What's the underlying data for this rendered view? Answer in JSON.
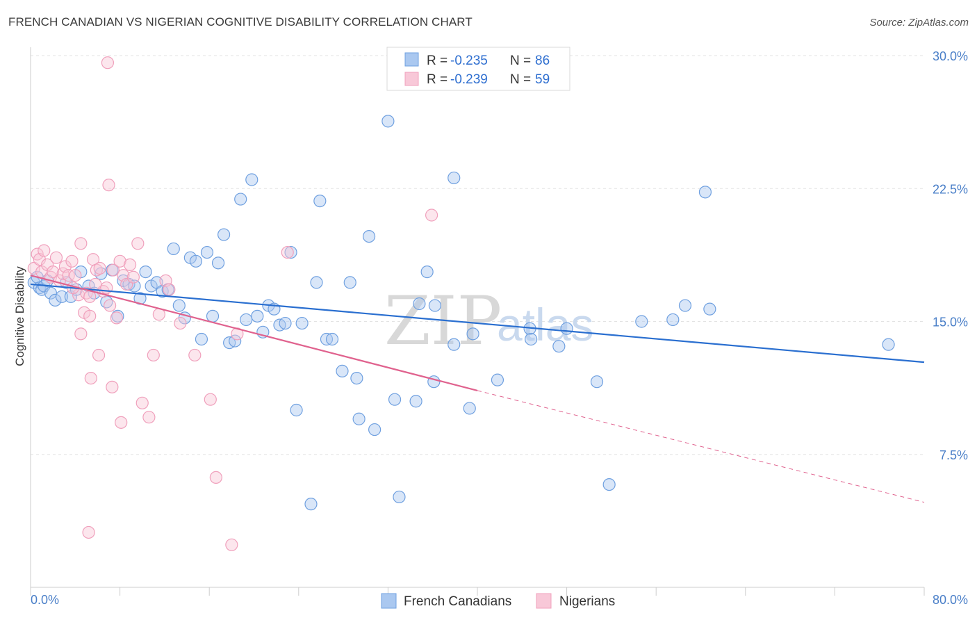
{
  "title": "FRENCH CANADIAN VS NIGERIAN COGNITIVE DISABILITY CORRELATION CHART",
  "source": "Source: ZipAtlas.com",
  "watermark": {
    "zip": "ZIP",
    "atlas": "atlas"
  },
  "chart_data": {
    "type": "scatter",
    "ylabel": "Cognitive Disability",
    "xlim": [
      0,
      80
    ],
    "ylim": [
      0,
      30
    ],
    "x_tick_labels": [
      "0.0%",
      "80.0%"
    ],
    "y_ticks": [
      7.5,
      15.0,
      22.5,
      30.0
    ],
    "y_tick_labels": [
      "7.5%",
      "15.0%",
      "22.5%",
      "30.0%"
    ],
    "grid": true,
    "legend": {
      "placement": "top-center",
      "entries": [
        {
          "r_label": "R =",
          "r_value": "-0.235",
          "n_label": "N =",
          "n_value": "86"
        },
        {
          "r_label": "R =",
          "r_value": "-0.239",
          "n_label": "N =",
          "n_value": "59"
        }
      ]
    },
    "series": [
      {
        "name": "French Canadians",
        "color": "#6fa0e0",
        "fill": "#aac8f0",
        "trend_color": "#2a6fd0",
        "trend": {
          "x0": 0,
          "y0": 17.1,
          "x1": 80,
          "y1": 12.7
        },
        "points": [
          [
            0.3,
            17.2
          ],
          [
            0.6,
            17.5
          ],
          [
            0.8,
            16.9
          ],
          [
            1.0,
            16.8
          ],
          [
            1.2,
            17.0
          ],
          [
            1.5,
            17.3
          ],
          [
            1.8,
            16.6
          ],
          [
            2.2,
            16.2
          ],
          [
            2.8,
            16.4
          ],
          [
            3.2,
            17.2
          ],
          [
            3.6,
            16.4
          ],
          [
            4.1,
            16.8
          ],
          [
            4.5,
            17.8
          ],
          [
            5.2,
            17.0
          ],
          [
            5.7,
            16.6
          ],
          [
            6.3,
            17.7
          ],
          [
            6.8,
            16.1
          ],
          [
            7.3,
            17.9
          ],
          [
            7.8,
            15.3
          ],
          [
            8.3,
            17.3
          ],
          [
            8.8,
            17.1
          ],
          [
            9.3,
            17.0
          ],
          [
            9.8,
            16.3
          ],
          [
            10.3,
            17.8
          ],
          [
            10.8,
            17.0
          ],
          [
            11.3,
            17.2
          ],
          [
            11.8,
            16.7
          ],
          [
            12.3,
            16.8
          ],
          [
            12.8,
            19.1
          ],
          [
            13.3,
            15.9
          ],
          [
            13.8,
            15.2
          ],
          [
            14.3,
            18.6
          ],
          [
            14.8,
            18.4
          ],
          [
            15.3,
            14.0
          ],
          [
            15.8,
            18.9
          ],
          [
            16.3,
            15.3
          ],
          [
            16.8,
            18.3
          ],
          [
            17.3,
            19.9
          ],
          [
            17.8,
            13.8
          ],
          [
            18.3,
            13.9
          ],
          [
            18.8,
            21.9
          ],
          [
            19.3,
            15.1
          ],
          [
            19.8,
            23.0
          ],
          [
            20.3,
            15.3
          ],
          [
            20.8,
            14.4
          ],
          [
            21.3,
            15.9
          ],
          [
            21.8,
            15.7
          ],
          [
            22.3,
            14.8
          ],
          [
            22.8,
            14.9
          ],
          [
            23.3,
            18.9
          ],
          [
            23.8,
            10.0
          ],
          [
            24.3,
            14.9
          ],
          [
            25.1,
            4.7
          ],
          [
            25.6,
            17.2
          ],
          [
            25.9,
            21.8
          ],
          [
            26.5,
            14.0
          ],
          [
            27.0,
            14.0
          ],
          [
            27.9,
            12.2
          ],
          [
            28.6,
            17.2
          ],
          [
            29.2,
            11.8
          ],
          [
            29.4,
            9.5
          ],
          [
            30.3,
            19.8
          ],
          [
            30.8,
            8.9
          ],
          [
            32.0,
            26.3
          ],
          [
            32.6,
            10.6
          ],
          [
            33.0,
            5.1
          ],
          [
            34.5,
            10.5
          ],
          [
            34.8,
            16.0
          ],
          [
            35.5,
            17.8
          ],
          [
            36.1,
            11.6
          ],
          [
            36.2,
            15.9
          ],
          [
            37.9,
            23.1
          ],
          [
            37.9,
            13.7
          ],
          [
            39.3,
            10.1
          ],
          [
            39.6,
            14.3
          ],
          [
            41.8,
            11.7
          ],
          [
            44.7,
            14.6
          ],
          [
            44.8,
            14.0
          ],
          [
            47.3,
            13.6
          ],
          [
            48.0,
            14.6
          ],
          [
            50.7,
            11.6
          ],
          [
            51.8,
            5.8
          ],
          [
            54.7,
            15.0
          ],
          [
            57.5,
            15.1
          ],
          [
            58.6,
            15.9
          ],
          [
            60.4,
            22.3
          ],
          [
            60.8,
            15.7
          ],
          [
            76.8,
            13.7
          ]
        ]
      },
      {
        "name": "Nigerians",
        "color": "#f0a0bc",
        "fill": "#f8c8d8",
        "trend_color": "#e0628e",
        "trend": {
          "x0": 0,
          "y0": 17.6,
          "x1": 40,
          "y1": 11.1
        },
        "trend_dashed": {
          "x0": 40,
          "y0": 11.1,
          "x1": 80,
          "y1": 4.8
        },
        "points": [
          [
            0.3,
            18.0
          ],
          [
            0.6,
            18.8
          ],
          [
            0.8,
            18.5
          ],
          [
            1.0,
            17.8
          ],
          [
            1.2,
            19.0
          ],
          [
            1.5,
            18.2
          ],
          [
            1.8,
            17.5
          ],
          [
            2.0,
            17.8
          ],
          [
            2.3,
            18.6
          ],
          [
            2.6,
            17.3
          ],
          [
            2.9,
            17.7
          ],
          [
            3.1,
            18.1
          ],
          [
            3.4,
            17.6
          ],
          [
            3.7,
            18.4
          ],
          [
            4.0,
            17.6
          ],
          [
            4.3,
            16.5
          ],
          [
            4.5,
            19.4
          ],
          [
            4.8,
            15.5
          ],
          [
            5.0,
            16.6
          ],
          [
            5.3,
            16.4
          ],
          [
            5.6,
            18.5
          ],
          [
            5.9,
            17.9
          ],
          [
            6.2,
            18.0
          ],
          [
            6.5,
            16.7
          ],
          [
            6.8,
            16.9
          ],
          [
            7.1,
            15.9
          ],
          [
            7.4,
            17.9
          ],
          [
            7.7,
            15.2
          ],
          [
            8.0,
            18.4
          ],
          [
            8.3,
            17.6
          ],
          [
            8.6,
            17.1
          ],
          [
            8.9,
            18.2
          ],
          [
            9.2,
            17.5
          ],
          [
            6.9,
            29.6
          ],
          [
            7.0,
            22.7
          ],
          [
            5.3,
            15.3
          ],
          [
            4.5,
            14.3
          ],
          [
            6.1,
            13.1
          ],
          [
            5.4,
            11.8
          ],
          [
            7.3,
            11.3
          ],
          [
            8.1,
            9.3
          ],
          [
            9.6,
            19.4
          ],
          [
            10.0,
            10.4
          ],
          [
            10.6,
            9.6
          ],
          [
            11.0,
            13.1
          ],
          [
            11.5,
            15.4
          ],
          [
            12.1,
            17.3
          ],
          [
            12.4,
            16.8
          ],
          [
            13.4,
            14.9
          ],
          [
            14.7,
            13.1
          ],
          [
            16.1,
            10.6
          ],
          [
            16.6,
            6.2
          ],
          [
            18.5,
            14.3
          ],
          [
            18.0,
            2.4
          ],
          [
            23.0,
            18.9
          ],
          [
            35.9,
            21.0
          ],
          [
            5.2,
            3.1
          ],
          [
            5.8,
            17.1
          ],
          [
            3.8,
            16.9
          ]
        ]
      }
    ]
  }
}
